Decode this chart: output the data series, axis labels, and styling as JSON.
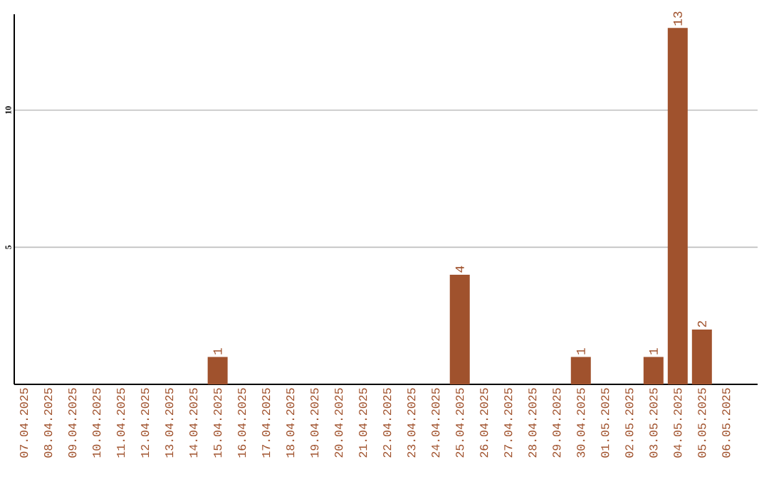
{
  "chart_data": {
    "type": "bar",
    "categories": [
      "07.04.2025",
      "08.04.2025",
      "09.04.2025",
      "10.04.2025",
      "11.04.2025",
      "12.04.2025",
      "13.04.2025",
      "14.04.2025",
      "15.04.2025",
      "16.04.2025",
      "17.04.2025",
      "18.04.2025",
      "19.04.2025",
      "20.04.2025",
      "21.04.2025",
      "22.04.2025",
      "23.04.2025",
      "24.04.2025",
      "25.04.2025",
      "26.04.2025",
      "27.04.2025",
      "28.04.2025",
      "29.04.2025",
      "30.04.2025",
      "01.05.2025",
      "02.05.2025",
      "03.05.2025",
      "04.05.2025",
      "05.05.2025",
      "06.05.2025"
    ],
    "values": [
      0,
      0,
      0,
      0,
      0,
      0,
      0,
      0,
      1,
      0,
      0,
      0,
      0,
      0,
      0,
      0,
      0,
      0,
      4,
      0,
      0,
      0,
      0,
      1,
      0,
      0,
      1,
      13,
      2,
      0
    ],
    "value_labels": [
      null,
      null,
      null,
      null,
      null,
      null,
      null,
      null,
      "1",
      null,
      null,
      null,
      null,
      null,
      null,
      null,
      null,
      null,
      "4",
      null,
      null,
      null,
      null,
      "1",
      null,
      null,
      "1",
      "13",
      "2",
      null
    ],
    "color": "#a0522d",
    "ylim": [
      0,
      13.5
    ],
    "yticks": [
      5,
      10
    ],
    "grid": "y"
  }
}
